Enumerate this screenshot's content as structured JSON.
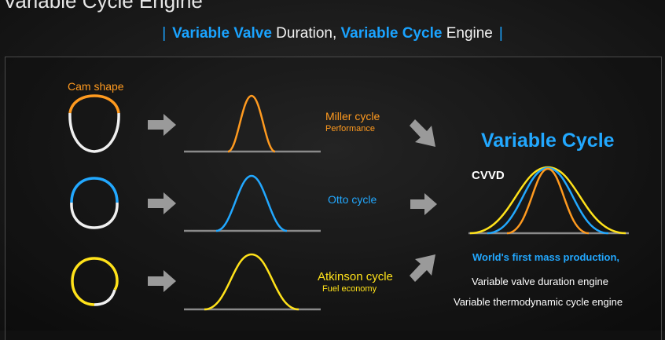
{
  "page_title": "Variable Cycle Engine",
  "subtitle": {
    "part1": "Variable Valve",
    "part2": " Duration, ",
    "part3": "Variable Cycle",
    "part4": " Engine"
  },
  "cam_shape_label": "Cam shape",
  "rows": [
    {
      "cycle": "Miller cycle",
      "note": "Performance",
      "color": "#ff9a1f",
      "duration": "short"
    },
    {
      "cycle": "Otto cycle",
      "note": "",
      "color": "#22a8ff",
      "duration": "medium"
    },
    {
      "cycle": "Atkinson cycle",
      "note": "Fuel economy",
      "color": "#ffe21a",
      "duration": "long"
    }
  ],
  "result": {
    "title": "Variable Cycle",
    "tag": "CVVD",
    "headline": "World's first mass production,",
    "line1": "Variable valve duration engine",
    "line2": "Variable thermodynamic cycle engine"
  },
  "colors": {
    "accent_blue": "#22a8ff",
    "orange": "#ff9a1f",
    "yellow": "#ffe21a",
    "cam_white": "#f0f0f0",
    "baseline": "#8a8a8a",
    "arrow": "#9a9a9a"
  }
}
